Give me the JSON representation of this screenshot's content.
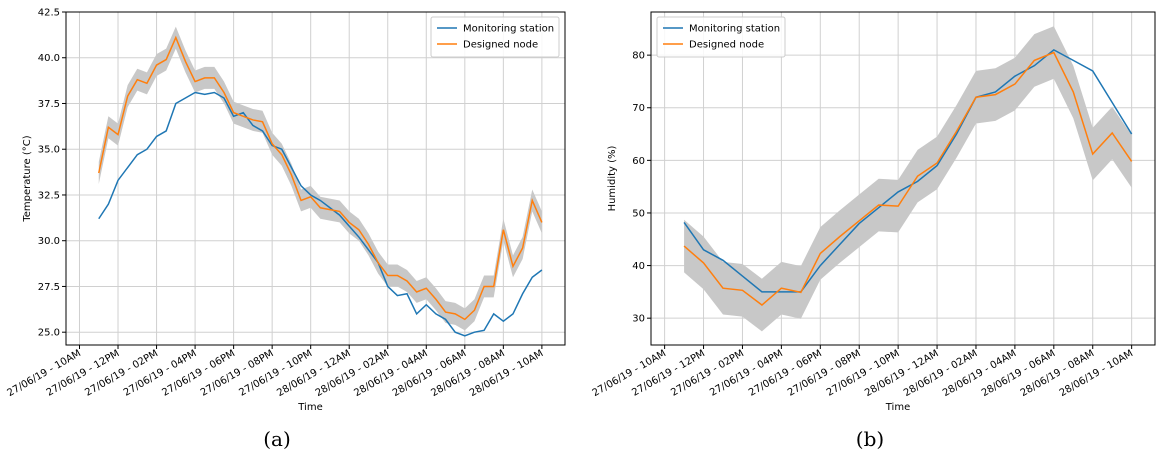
{
  "chart_data": [
    {
      "type": "line",
      "caption": "(a)",
      "x_label": "Time",
      "y_label": "Temperature (°C)",
      "grid": true,
      "legend": "upper right",
      "x": [
        1,
        1.5,
        2,
        2.5,
        3,
        3.5,
        4,
        4.5,
        5,
        5.5,
        6,
        6.5,
        7,
        7.5,
        8,
        8.5,
        9,
        9.5,
        10,
        10.5,
        11,
        11.5,
        12,
        12.5,
        13,
        13.5,
        14,
        14.5,
        15,
        15.5,
        16,
        16.5,
        17,
        17.5,
        18,
        18.5,
        19,
        19.5,
        20,
        20.5,
        21,
        21.5,
        22,
        22.5,
        23,
        23.5,
        24
      ],
      "xlim": [
        -0.7,
        25.2
      ],
      "xticks": [
        {
          "value": 0,
          "label": "27/06/19 - 10AM"
        },
        {
          "value": 2,
          "label": "27/06/19 - 12PM"
        },
        {
          "value": 4,
          "label": "27/06/19 - 02PM"
        },
        {
          "value": 6,
          "label": "27/06/19 - 04PM"
        },
        {
          "value": 8,
          "label": "27/06/19 - 06PM"
        },
        {
          "value": 10,
          "label": "27/06/19 - 08PM"
        },
        {
          "value": 12,
          "label": "27/06/19 - 10PM"
        },
        {
          "value": 14,
          "label": "28/06/19 - 12AM"
        },
        {
          "value": 16,
          "label": "28/06/19 - 02AM"
        },
        {
          "value": 18,
          "label": "28/06/19 - 04AM"
        },
        {
          "value": 20,
          "label": "28/06/19 - 06AM"
        },
        {
          "value": 22,
          "label": "28/06/19 - 08AM"
        },
        {
          "value": 24,
          "label": "28/06/19 - 10AM"
        }
      ],
      "ylim": [
        24.3,
        42.5
      ],
      "yticks": [
        {
          "value": 25,
          "label": "25.0"
        },
        27.5,
        {
          "value": 30,
          "label": "30.0"
        },
        32.5,
        {
          "value": 35,
          "label": "35.0"
        },
        37.5,
        {
          "value": 40,
          "label": "40.0"
        },
        42.5
      ],
      "series": [
        {
          "name": "Monitoring station",
          "color": "#1f77b4",
          "values": [
            31.2,
            32.0,
            33.3,
            34.0,
            34.7,
            35.0,
            35.7,
            36.0,
            37.5,
            37.8,
            38.1,
            38.0,
            38.1,
            37.8,
            36.8,
            37.0,
            36.3,
            36.0,
            35.2,
            35.0,
            34.0,
            33.0,
            32.5,
            32.2,
            31.8,
            31.4,
            30.8,
            30.2,
            29.5,
            28.8,
            27.5,
            27.0,
            27.1,
            26.0,
            26.5,
            26.0,
            25.7,
            25.0,
            24.8,
            25.0,
            25.1,
            26.0,
            25.6,
            26.0,
            27.1,
            28.0,
            28.4
          ]
        },
        {
          "name": "Designed node",
          "color": "#ff7f0e",
          "band_color": "#c8c8c8",
          "error": 0.6,
          "values": [
            33.7,
            36.2,
            35.8,
            37.9,
            38.8,
            38.6,
            39.6,
            39.9,
            41.1,
            39.8,
            38.7,
            38.9,
            38.9,
            38.1,
            37.0,
            36.8,
            36.6,
            36.5,
            35.3,
            34.7,
            33.6,
            32.2,
            32.4,
            31.8,
            31.7,
            31.6,
            31.0,
            30.6,
            29.8,
            28.8,
            28.1,
            28.1,
            27.8,
            27.2,
            27.4,
            26.8,
            26.1,
            26.0,
            25.7,
            26.2,
            27.5,
            27.5,
            30.6,
            28.6,
            29.6,
            32.2,
            31.0
          ]
        }
      ]
    },
    {
      "type": "line",
      "caption": "(b)",
      "x_label": "Time",
      "y_label": "Humidity (%)",
      "grid": true,
      "legend": "upper left",
      "x": [
        1,
        2,
        3,
        4,
        5,
        6,
        7,
        8,
        9,
        10,
        11,
        12,
        13,
        14,
        15,
        16,
        17,
        18,
        19,
        20,
        21,
        22,
        23,
        24
      ],
      "xlim": [
        -0.7,
        25.2
      ],
      "xticks": [
        {
          "value": 0,
          "label": "27/06/19 - 10AM"
        },
        {
          "value": 2,
          "label": "27/06/19 - 12PM"
        },
        {
          "value": 4,
          "label": "27/06/19 - 02PM"
        },
        {
          "value": 6,
          "label": "27/06/19 - 04PM"
        },
        {
          "value": 8,
          "label": "27/06/19 - 06PM"
        },
        {
          "value": 10,
          "label": "27/06/19 - 08PM"
        },
        {
          "value": 12,
          "label": "27/06/19 - 10PM"
        },
        {
          "value": 14,
          "label": "28/06/19 - 12AM"
        },
        {
          "value": 16,
          "label": "28/06/19 - 02AM"
        },
        {
          "value": 18,
          "label": "28/06/19 - 04AM"
        },
        {
          "value": 20,
          "label": "28/06/19 - 06AM"
        },
        {
          "value": 22,
          "label": "28/06/19 - 08AM"
        },
        {
          "value": 24,
          "label": "28/06/19 - 10AM"
        }
      ],
      "ylim": [
        24.9,
        88.2
      ],
      "yticks": [
        30,
        40,
        50,
        60,
        70,
        80
      ],
      "series": [
        {
          "name": "Monitoring station",
          "color": "#1f77b4",
          "values": [
            48.2,
            43,
            41,
            38,
            35,
            35,
            35,
            40,
            44,
            48,
            51,
            54,
            56,
            59,
            65,
            72,
            73,
            76,
            78,
            81,
            79,
            77,
            71,
            65
          ]
        },
        {
          "name": "Designed node",
          "color": "#ff7f0e",
          "band_color": "#c8c8c8",
          "error": 5,
          "values": [
            43.7,
            40.5,
            35.7,
            35.3,
            32.5,
            35.7,
            34.9,
            42.3,
            45.5,
            48.5,
            51.5,
            51.3,
            57,
            59.5,
            65.5,
            72,
            72.5,
            74.5,
            79,
            80.5,
            73,
            61.2,
            65.2,
            59.8
          ]
        }
      ]
    }
  ]
}
